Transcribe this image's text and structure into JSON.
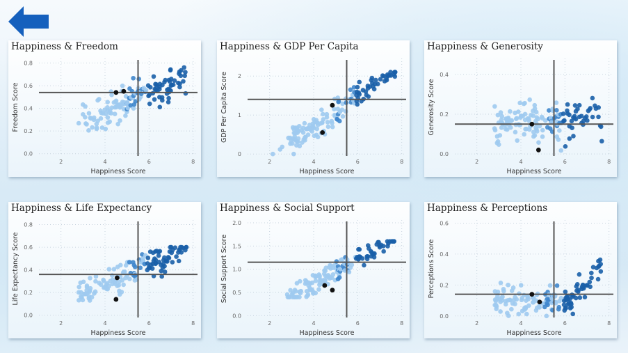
{
  "back_button": {
    "icon": "back-arrow-icon",
    "color": "#1560bd"
  },
  "colors": {
    "dark": "#1a5fa8",
    "mid": "#3f86cc",
    "light": "#9fcaef",
    "highlight": "#111111",
    "refline": "#555555"
  },
  "chart_data": [
    {
      "id": "freedom",
      "type": "scatter",
      "title": "Happiness & Freedom",
      "xlabel": "Happiness Score",
      "ylabel": "Freedom Score",
      "xlim": [
        1,
        8.2
      ],
      "ylim": [
        -0.02,
        0.84
      ],
      "xticks": [
        2,
        4,
        6,
        8
      ],
      "yticks": [
        0.0,
        0.2,
        0.4,
        0.6,
        0.8
      ],
      "ytick_decimals": 1,
      "ref_x": 5.5,
      "ref_y": 0.54,
      "grid": true,
      "highlights": [
        [
          4.5,
          0.54
        ],
        [
          4.85,
          0.55
        ]
      ]
    },
    {
      "id": "gdp",
      "type": "scatter",
      "title": "Happiness & GDP Per Capita",
      "xlabel": "Happiness Score",
      "ylabel": "GDP Per Capita Score",
      "xlim": [
        1,
        8.2
      ],
      "ylim": [
        -0.05,
        2.45
      ],
      "xticks": [
        2,
        4,
        6,
        8
      ],
      "yticks": [
        0,
        1,
        2
      ],
      "ytick_decimals": 0,
      "ref_x": 5.5,
      "ref_y": 1.4,
      "grid": true,
      "highlights": [
        [
          4.85,
          1.25
        ],
        [
          4.4,
          0.55
        ]
      ]
    },
    {
      "id": "generosity",
      "type": "scatter",
      "title": "Happiness & Generosity",
      "xlabel": "Happiness Score",
      "ylabel": "Generosity Score",
      "xlim": [
        1,
        8.2
      ],
      "ylim": [
        -0.01,
        0.48
      ],
      "xticks": [
        2,
        4,
        6,
        8
      ],
      "yticks": [
        0.0,
        0.2,
        0.4
      ],
      "ytick_decimals": 1,
      "ref_x": 5.5,
      "ref_y": 0.15,
      "grid": true,
      "highlights": [
        [
          4.5,
          0.15
        ],
        [
          4.8,
          0.02
        ]
      ]
    },
    {
      "id": "life",
      "type": "scatter",
      "title": "Happiness & Life Expectancy",
      "xlabel": "Happiness Score",
      "ylabel": "Life Expectancy Score",
      "xlim": [
        1,
        8.2
      ],
      "ylim": [
        -0.02,
        0.84
      ],
      "xticks": [
        2,
        4,
        6,
        8
      ],
      "yticks": [
        0.0,
        0.2,
        0.4,
        0.6,
        0.8
      ],
      "ytick_decimals": 1,
      "ref_x": 5.5,
      "ref_y": 0.36,
      "grid": true,
      "highlights": [
        [
          4.55,
          0.33
        ],
        [
          4.5,
          0.14
        ]
      ]
    },
    {
      "id": "social",
      "type": "scatter",
      "title": "Happiness & Social Support",
      "xlabel": "Happiness Score",
      "ylabel": "Social Support Score",
      "xlim": [
        1,
        8.2
      ],
      "ylim": [
        -0.04,
        2.06
      ],
      "xticks": [
        2,
        4,
        6,
        8
      ],
      "yticks": [
        0.0,
        0.5,
        1.0,
        1.5,
        2.0
      ],
      "ytick_decimals": 1,
      "ref_x": 5.5,
      "ref_y": 1.15,
      "grid": true,
      "highlights": [
        [
          4.5,
          0.65
        ],
        [
          4.85,
          0.55
        ]
      ]
    },
    {
      "id": "perceptions",
      "type": "scatter",
      "title": "Happiness & Perceptions",
      "xlabel": "Happiness Score",
      "ylabel": "Perceptions Score",
      "xlim": [
        1,
        8.2
      ],
      "ylim": [
        -0.01,
        0.62
      ],
      "xticks": [
        2,
        4,
        6,
        8
      ],
      "yticks": [
        0.0,
        0.2,
        0.4,
        0.6
      ],
      "ytick_decimals": 1,
      "ref_x": 5.5,
      "ref_y": 0.14,
      "grid": true,
      "highlights": [
        [
          4.5,
          0.14
        ],
        [
          4.85,
          0.09
        ]
      ]
    }
  ]
}
